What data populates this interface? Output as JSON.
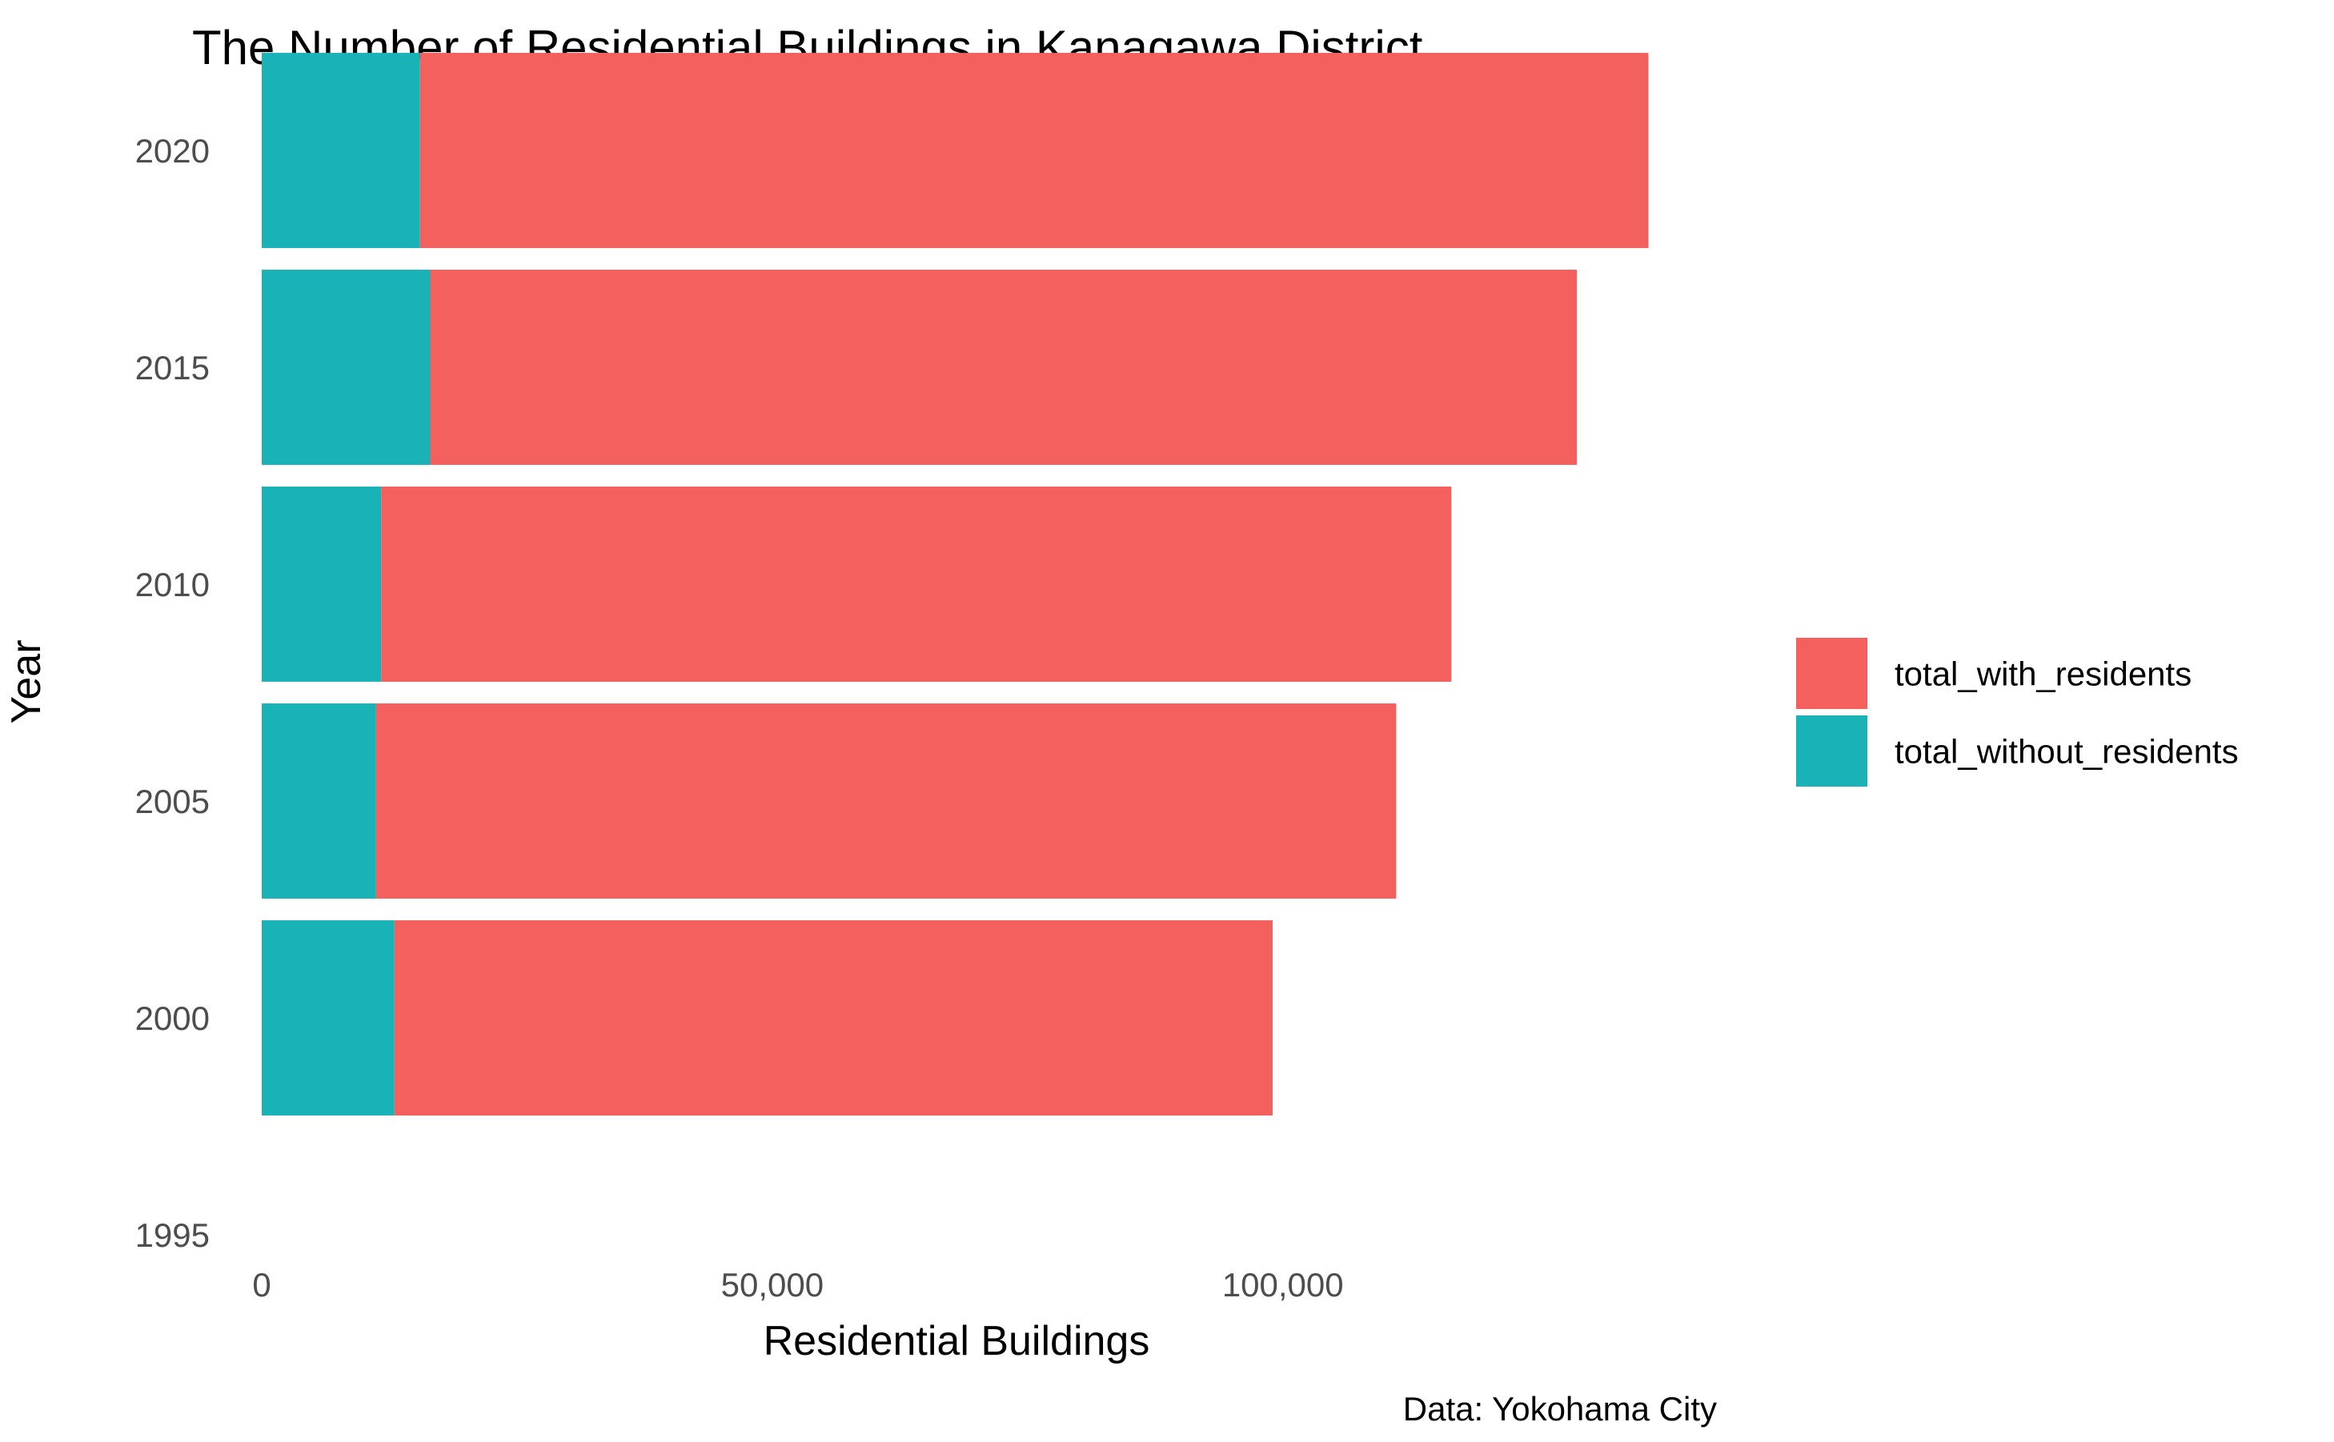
{
  "chart_data": {
    "type": "bar",
    "orientation": "horizontal",
    "stacked": true,
    "title": "The Number of Residential Buildings in Kanagawa District",
    "xlabel": "Residential Buildings",
    "ylabel": "Year",
    "caption": "Data: Yokohama City",
    "xlim": [
      0,
      136000
    ],
    "ylim": [
      1995,
      2020
    ],
    "x_ticks": [
      {
        "value": 0,
        "label": "0"
      },
      {
        "value": 50000,
        "label": "50,000"
      },
      {
        "value": 100000,
        "label": "100,000"
      }
    ],
    "y_ticks": [
      {
        "value": 2020,
        "label": "2020"
      },
      {
        "value": 2015,
        "label": "2015"
      },
      {
        "value": 2010,
        "label": "2010"
      },
      {
        "value": 2005,
        "label": "2005"
      },
      {
        "value": 2000,
        "label": "2000"
      },
      {
        "value": 1995,
        "label": "1995"
      }
    ],
    "bar_width_years": 4.5,
    "grid": false,
    "legend_position": "right",
    "categories": [
      2000,
      2005,
      2010,
      2015,
      2020
    ],
    "series": [
      {
        "name": "total_without_residents",
        "color": "#19B3B7",
        "values": [
          13000,
          11200,
          11700,
          16500,
          15500
        ]
      },
      {
        "name": "total_with_residents",
        "color": "#F3605D",
        "values": [
          86000,
          99900,
          104800,
          112300,
          120300
        ]
      }
    ],
    "legend": [
      {
        "name": "total_with_residents",
        "color": "#F3605D"
      },
      {
        "name": "total_without_residents",
        "color": "#19B3B7"
      }
    ]
  }
}
